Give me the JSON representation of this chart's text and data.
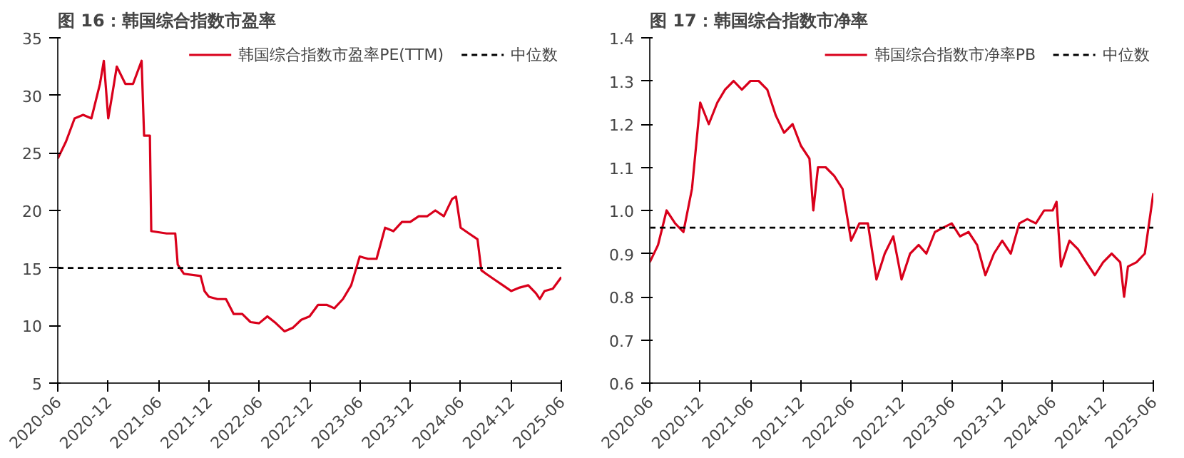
{
  "chart_data": [
    {
      "type": "line",
      "title": "图 16：韩国综合指数市盈率",
      "legend": "top",
      "xlim": [
        "2020-06-01",
        "2025-06-01"
      ],
      "xticks": [
        "2020-06",
        "2020-12",
        "2021-06",
        "2021-12",
        "2022-06",
        "2022-12",
        "2023-06",
        "2023-12",
        "2024-06",
        "2024-12",
        "2025-06"
      ],
      "ylim": [
        5,
        35
      ],
      "yticks": [
        5,
        10,
        15,
        20,
        25,
        30,
        35
      ],
      "series": [
        {
          "name": "韩国综合指数市盈率PE(TTM)",
          "color": "#d9001b",
          "line_style": "solid",
          "x": [
            "2020-06-01",
            "2020-07-01",
            "2020-08-01",
            "2020-09-01",
            "2020-10-01",
            "2020-11-01",
            "2020-11-15",
            "2020-12-01",
            "2020-12-15",
            "2021-01-01",
            "2021-02-01",
            "2021-03-01",
            "2021-04-01",
            "2021-04-10",
            "2021-05-01",
            "2021-05-06",
            "2021-07-01",
            "2021-08-01",
            "2021-08-10",
            "2021-09-01",
            "2021-11-01",
            "2021-11-15",
            "2021-12-01",
            "2022-01-01",
            "2022-02-01",
            "2022-03-01",
            "2022-04-01",
            "2022-05-01",
            "2022-06-01",
            "2022-07-01",
            "2022-08-01",
            "2022-09-01",
            "2022-10-01",
            "2022-11-01",
            "2022-12-01",
            "2023-01-01",
            "2023-02-01",
            "2023-03-01",
            "2023-04-01",
            "2023-05-01",
            "2023-06-01",
            "2023-07-01",
            "2023-08-01",
            "2023-09-01",
            "2023-10-01",
            "2023-11-01",
            "2023-12-01",
            "2024-01-01",
            "2024-02-01",
            "2024-03-01",
            "2024-04-01",
            "2024-05-01",
            "2024-05-15",
            "2024-06-01",
            "2024-07-01",
            "2024-08-01",
            "2024-08-15",
            "2024-09-01",
            "2024-10-01",
            "2024-11-01",
            "2024-12-01",
            "2025-01-01",
            "2025-02-01",
            "2025-03-01",
            "2025-03-15",
            "2025-04-01",
            "2025-05-01",
            "2025-06-01"
          ],
          "values": [
            24.5,
            26,
            28,
            28.3,
            28,
            31,
            33,
            28,
            30,
            32.5,
            31,
            31,
            33,
            26.5,
            26.5,
            18.2,
            18,
            18,
            15.3,
            14.5,
            14.3,
            13,
            12.5,
            12.3,
            12.3,
            11,
            11,
            10.3,
            10.2,
            10.8,
            10.2,
            9.5,
            9.8,
            10.5,
            10.8,
            11.8,
            11.8,
            11.5,
            12.3,
            13.5,
            16,
            15.8,
            15.8,
            18.5,
            18.2,
            19,
            19,
            19.5,
            19.5,
            20,
            19.5,
            21,
            21.2,
            18.5,
            18,
            17.5,
            14.8,
            14.5,
            14,
            13.5,
            13,
            13.3,
            13.5,
            12.8,
            12.3,
            13,
            13.2,
            14.2
          ]
        },
        {
          "name": "中位数",
          "color": "#000000",
          "line_style": "dashed",
          "x": [
            "2020-06-01",
            "2025-06-01"
          ],
          "values": [
            15,
            15
          ]
        }
      ]
    },
    {
      "type": "line",
      "title": "图 17：韩国综合指数市净率",
      "legend": "top",
      "xlim": [
        "2020-06-01",
        "2025-06-01"
      ],
      "xticks": [
        "2020-06",
        "2020-12",
        "2021-06",
        "2021-12",
        "2022-06",
        "2022-12",
        "2023-06",
        "2023-12",
        "2024-06",
        "2024-12",
        "2025-06"
      ],
      "ylim": [
        0.6,
        1.4
      ],
      "yticks": [
        {
          "value": 0.6,
          "label": "0.6"
        },
        {
          "value": 0.7,
          "label": "0.7"
        },
        {
          "value": 0.8,
          "label": "0.8"
        },
        {
          "value": 0.9,
          "label": "0.9"
        },
        {
          "value": 1.0,
          "label": "1.0"
        },
        {
          "value": 1.1,
          "label": "1.1"
        },
        {
          "value": 1.2,
          "label": "1.2"
        },
        {
          "value": 1.3,
          "label": "1.3"
        },
        {
          "value": 1.4,
          "label": "1.4"
        }
      ],
      "series": [
        {
          "name": "韩国综合指数市净率PB",
          "color": "#d9001b",
          "line_style": "solid",
          "x": [
            "2020-06-01",
            "2020-07-01",
            "2020-08-01",
            "2020-09-01",
            "2020-10-01",
            "2020-11-01",
            "2020-12-01",
            "2021-01-01",
            "2021-02-01",
            "2021-03-01",
            "2021-04-01",
            "2021-05-01",
            "2021-06-01",
            "2021-07-01",
            "2021-08-01",
            "2021-09-01",
            "2021-10-01",
            "2021-11-01",
            "2021-12-01",
            "2022-01-01",
            "2022-01-15",
            "2022-02-01",
            "2022-03-01",
            "2022-04-01",
            "2022-05-01",
            "2022-06-01",
            "2022-07-01",
            "2022-08-01",
            "2022-09-01",
            "2022-10-01",
            "2022-11-01",
            "2022-12-01",
            "2023-01-01",
            "2023-02-01",
            "2023-03-01",
            "2023-04-01",
            "2023-05-01",
            "2023-06-01",
            "2023-07-01",
            "2023-08-01",
            "2023-09-01",
            "2023-10-01",
            "2023-11-01",
            "2023-12-01",
            "2024-01-01",
            "2024-02-01",
            "2024-03-01",
            "2024-04-01",
            "2024-05-01",
            "2024-06-01",
            "2024-06-15",
            "2024-07-01",
            "2024-08-01",
            "2024-09-01",
            "2024-10-01",
            "2024-11-01",
            "2024-12-01",
            "2025-01-01",
            "2025-02-01",
            "2025-02-15",
            "2025-03-01",
            "2025-04-01",
            "2025-05-01",
            "2025-06-01"
          ],
          "values": [
            0.88,
            0.92,
            1.0,
            0.97,
            0.95,
            1.05,
            1.25,
            1.2,
            1.25,
            1.28,
            1.3,
            1.28,
            1.3,
            1.3,
            1.28,
            1.22,
            1.18,
            1.2,
            1.15,
            1.12,
            1.0,
            1.1,
            1.1,
            1.08,
            1.05,
            0.93,
            0.97,
            0.97,
            0.84,
            0.9,
            0.94,
            0.84,
            0.9,
            0.92,
            0.9,
            0.95,
            0.96,
            0.97,
            0.94,
            0.95,
            0.92,
            0.85,
            0.9,
            0.93,
            0.9,
            0.97,
            0.98,
            0.97,
            1.0,
            1.0,
            1.02,
            0.87,
            0.93,
            0.91,
            0.88,
            0.85,
            0.88,
            0.9,
            0.88,
            0.8,
            0.87,
            0.88,
            0.9,
            1.04
          ]
        },
        {
          "name": "中位数",
          "color": "#000000",
          "line_style": "dashed",
          "x": [
            "2020-06-01",
            "2025-06-01"
          ],
          "values": [
            0.96,
            0.96
          ]
        }
      ]
    }
  ]
}
